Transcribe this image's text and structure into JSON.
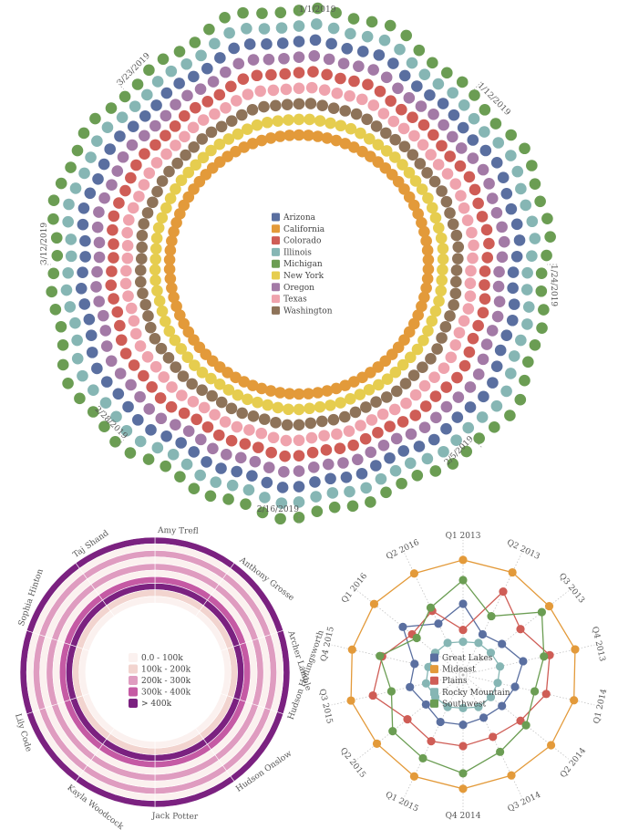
{
  "chart_data": [
    {
      "type": "radial-dot",
      "series": [
        {
          "name": "Arizona",
          "color": "#5a6fa0"
        },
        {
          "name": "California",
          "color": "#e39a3a"
        },
        {
          "name": "Colorado",
          "color": "#cf5d56"
        },
        {
          "name": "Illinois",
          "color": "#86b6b4"
        },
        {
          "name": "Michigan",
          "color": "#6b9d53"
        },
        {
          "name": "New York",
          "color": "#e6cd4f"
        },
        {
          "name": "Oregon",
          "color": "#a37aa6"
        },
        {
          "name": "Texas",
          "color": "#efa3ad"
        },
        {
          "name": "Washington",
          "color": "#8e7359"
        }
      ],
      "date_labels": [
        "1/1/2019",
        "1/12/2019",
        "1/24/2019",
        "2/5/2019",
        "2/16/2019",
        "2/28/2019",
        "3/12/2019",
        "3/23/2019"
      ],
      "legend_position": "center"
    },
    {
      "type": "radial-heatmap",
      "categories": [
        "Amy Trefl",
        "Anthony Grosse",
        "Archer Lamble",
        "Hudson Hollingsworth",
        "Hudson Onslow",
        "Jack Potter",
        "Kayla Woodcock",
        "Lily Code",
        "Sophia Hinton",
        "Taj Shand"
      ],
      "bins": [
        {
          "label": "0.0 - 100k",
          "color": "#fbf1ef"
        },
        {
          "label": "100k - 200k",
          "color": "#f2d4cf"
        },
        {
          "label": "200k - 300k",
          "color": "#df9cc0"
        },
        {
          "label": "300k - 400k",
          "color": "#c55aa4"
        },
        {
          "label": "> 400k",
          "color": "#7b2180"
        }
      ],
      "rings": [
        [
          4,
          4,
          4,
          4,
          4,
          4,
          4,
          4,
          4,
          4
        ],
        [
          0,
          0,
          0,
          0,
          0,
          0,
          0,
          0,
          0,
          0
        ],
        [
          2,
          2,
          2,
          2,
          2,
          2,
          2,
          2,
          2,
          2
        ],
        [
          0,
          0,
          0,
          0,
          0,
          0,
          0,
          0,
          0,
          0
        ],
        [
          2,
          2,
          2,
          2,
          2,
          2,
          2,
          2,
          2,
          2
        ],
        [
          0,
          0,
          0,
          0,
          0,
          0,
          0,
          0,
          0,
          0
        ],
        [
          3,
          3,
          3,
          3,
          3,
          3,
          3,
          3,
          3,
          3
        ],
        [
          4,
          4,
          4,
          4,
          4,
          4,
          4,
          4,
          4,
          4
        ],
        [
          1,
          1,
          1,
          1,
          1,
          1,
          1,
          1,
          1,
          1
        ],
        [
          0,
          0,
          0,
          0,
          0,
          0,
          0,
          0,
          0,
          0
        ]
      ],
      "legend_position": "center"
    },
    {
      "type": "radar",
      "categories": [
        "Q1 2013",
        "Q2 2013",
        "Q3 2013",
        "Q4 2013",
        "Q1 2014",
        "Q2 2014",
        "Q3 2014",
        "Q4 2014",
        "Q1 2015",
        "Q2 2015",
        "Q3 2015",
        "Q4 2015",
        "Q1 2016",
        "Q2 2016"
      ],
      "series": [
        {
          "name": "Great Lakes",
          "color": "#5a6fa0",
          "values": [
            0.6,
            0.38,
            0.42,
            0.52,
            0.45,
            0.42,
            0.4,
            0.42,
            0.44,
            0.4,
            0.46,
            0.42,
            0.65,
            0.48
          ]
        },
        {
          "name": "Mideast",
          "color": "#e39a3a",
          "values": [
            0.97,
            0.96,
            0.93,
            0.97,
            0.96,
            0.95,
            0.94,
            0.96,
            0.95,
            0.93,
            0.97,
            0.96,
            0.96,
            0.95
          ]
        },
        {
          "name": "Plains",
          "color": "#cf5d56",
          "values": [
            0.38,
            0.78,
            0.62,
            0.75,
            0.72,
            0.62,
            0.58,
            0.6,
            0.62,
            0.6,
            0.78,
            0.7,
            0.55,
            0.6
          ]
        },
        {
          "name": "Rocky Mountain",
          "color": "#86b6b4",
          "values": [
            0.28,
            0.3,
            0.3,
            0.32,
            0.3,
            0.3,
            0.3,
            0.28,
            0.3,
            0.3,
            0.32,
            0.3,
            0.3,
            0.3
          ]
        },
        {
          "name": "Southwest",
          "color": "#6b9d53",
          "values": [
            0.8,
            0.55,
            0.85,
            0.7,
            0.62,
            0.68,
            0.72,
            0.83,
            0.78,
            0.76,
            0.62,
            0.72,
            0.5,
            0.63
          ]
        }
      ],
      "legend_position": "center"
    }
  ]
}
